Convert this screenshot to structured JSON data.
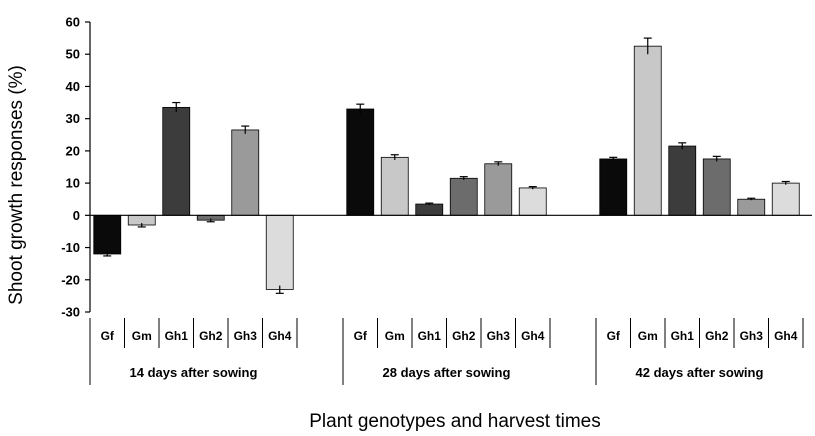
{
  "chart_data": {
    "type": "bar",
    "ylabel": "Shoot growth responses (%)",
    "xlabel": "Plant genotypes and harvest times",
    "ylim": [
      -30,
      60
    ],
    "yticks": [
      -30,
      -20,
      -10,
      0,
      10,
      20,
      30,
      40,
      50,
      60
    ],
    "grid": false,
    "categories": [
      "Gf",
      "Gm",
      "Gh1",
      "Gh2",
      "Gh3",
      "Gh4"
    ],
    "colors": [
      "#0a0a0a",
      "#c8c8c8",
      "#3c3c3c",
      "#6c6c6c",
      "#9a9a9a",
      "#dcdcdc"
    ],
    "groups": [
      {
        "label": "14 days after sowing",
        "values": [
          -12,
          -3,
          33.5,
          -1.5,
          26.5,
          -23
        ],
        "errors": [
          0.6,
          0.6,
          1.5,
          0.5,
          1.2,
          1.2
        ]
      },
      {
        "label": "28 days after sowing",
        "values": [
          33,
          18,
          3.5,
          11.5,
          16,
          8.5
        ],
        "errors": [
          1.5,
          0.8,
          0.3,
          0.5,
          0.6,
          0.4
        ]
      },
      {
        "label": "42 days after sowing",
        "values": [
          17.5,
          52.5,
          21.5,
          17.5,
          5,
          10
        ],
        "errors": [
          0.5,
          2.5,
          1.0,
          0.8,
          0.3,
          0.5
        ]
      }
    ]
  }
}
